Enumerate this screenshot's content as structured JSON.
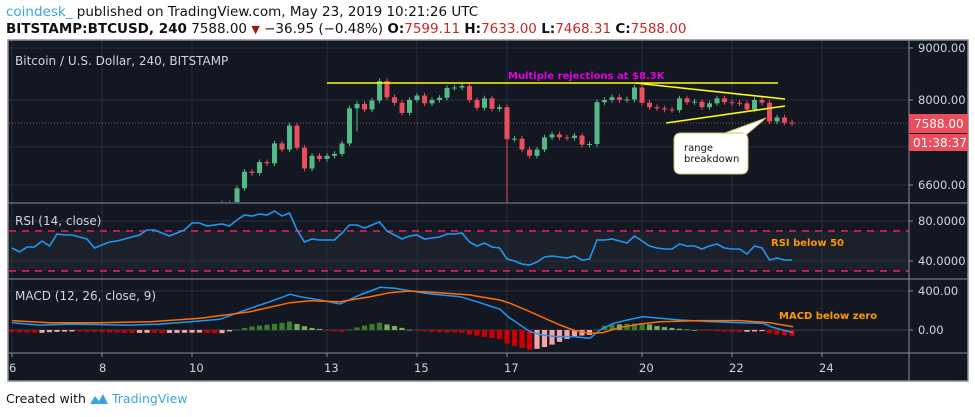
{
  "header": {
    "author": "coindesk_",
    "published": " published on TradingView.com, May 23, 2019 10:21:26 UTC",
    "symbol": "BITSTAMP:BTCUSD, 240",
    "last": "7588.00",
    "change_icon": "triangle-down-icon",
    "change": "−36.95 (−0.48%)",
    "o_label": "O:",
    "o": "7599.11",
    "h_label": "H:",
    "h": "7633.00",
    "l_label": "L:",
    "l": "7468.31",
    "c_label": "C:",
    "c": "7588.00"
  },
  "footer": {
    "created_with": "Created with",
    "brand": "TradingView",
    "logo_icon": "tradingview-logo-icon"
  },
  "colors": {
    "background": "#131722",
    "up": "#53b987",
    "down": "#eb4d5c",
    "rsi": "#2196f3",
    "macd": "#2196f3",
    "signal": "#ff6d00",
    "annotation_line": "#ffff00",
    "annotation_magenta": "#e100e1",
    "annotation_orange": "#ff9800"
  },
  "chart_data": [
    {
      "type": "candlestick",
      "title": "Bitcoin / U.S. Dollar, 240, BITSTAMP",
      "scale": "log",
      "y_ticks": [
        "9000.00",
        "8000.00",
        "6600.00"
      ],
      "last_price_label": "7588.00",
      "countdown_label": "01:38:37",
      "x_ticks": [
        "6",
        "8",
        "10",
        "13",
        "15",
        "17",
        "20",
        "22",
        "24"
      ],
      "x_tick_days": [
        6,
        8,
        10,
        13,
        15,
        17,
        20,
        22,
        24
      ],
      "first_candle_day": 10.667,
      "interval_minutes": 240,
      "first_open": 6250,
      "close": [
        6330,
        6320,
        6550,
        6800,
        6780,
        6950,
        6930,
        7250,
        7150,
        7550,
        7180,
        6850,
        7050,
        7000,
        7050,
        7080,
        7250,
        7850,
        7930,
        7830,
        7990,
        8350,
        8050,
        7950,
        7770,
        8000,
        8080,
        7940,
        8000,
        8040,
        8220,
        8230,
        8260,
        8000,
        7860,
        8030,
        7840,
        7870,
        7320,
        7330,
        7150,
        7050,
        7150,
        7350,
        7400,
        7350,
        7340,
        7380,
        7230,
        7240,
        7960,
        8000,
        8050,
        8000,
        8010,
        8230,
        7950,
        7870,
        7850,
        7830,
        7820,
        8030,
        7960,
        7970,
        7870,
        7940,
        8030,
        7960,
        7950,
        7940,
        7830,
        8000,
        7950,
        7620,
        7690,
        7600,
        7588
      ],
      "wick_overrides": [
        {
          "candle": 38,
          "low": 6150
        },
        {
          "candle": 18,
          "low": 7450
        }
      ],
      "annotations": {
        "resistance_label": "Multiple rejections at $8.3K",
        "callout": [
          "range",
          "breakdown"
        ]
      }
    },
    {
      "type": "line",
      "title": "RSI (14, close)",
      "y_ticks": [
        "80.0000",
        "40.0000"
      ],
      "bands": [
        70,
        30
      ],
      "first_day": 6,
      "interval_minutes": 240,
      "values": [
        53,
        49,
        54,
        54,
        60,
        55,
        67,
        66,
        66,
        64,
        62,
        53,
        56,
        59,
        60,
        62,
        64,
        66,
        71,
        71,
        68,
        65,
        68,
        71,
        78,
        78,
        75,
        76,
        77,
        75,
        81,
        86,
        85,
        87,
        86,
        90,
        85,
        88,
        71,
        59,
        62,
        61,
        61,
        61,
        68,
        76,
        76,
        73,
        76,
        79,
        70,
        66,
        62,
        65,
        66,
        62,
        63,
        64,
        67,
        67,
        68,
        59,
        55,
        58,
        54,
        53,
        42,
        40,
        37,
        36,
        39,
        44,
        45,
        44,
        43,
        45,
        41,
        42,
        61,
        61,
        62,
        60,
        58,
        65,
        60,
        55,
        53,
        52,
        52,
        57,
        55,
        55,
        52,
        55,
        57,
        53,
        52,
        52,
        47,
        55,
        53,
        41,
        43,
        41,
        41
      ],
      "annotation": "RSI below 50"
    },
    {
      "type": "line",
      "title": "MACD (12, 26, close, 9)",
      "y_ticks": [
        "400.00",
        "0.00"
      ],
      "series": [
        {
          "key": "macd",
          "points": [
            [
              6.0,
              75
            ],
            [
              6.62,
              50
            ],
            [
              7.29,
              60
            ],
            [
              7.96,
              55
            ],
            [
              8.62,
              50
            ],
            [
              9.29,
              60
            ],
            [
              9.96,
              85
            ],
            [
              10.62,
              110
            ],
            [
              11.29,
              222
            ],
            [
              11.73,
              290
            ],
            [
              12.18,
              366
            ],
            [
              12.4,
              342
            ],
            [
              12.84,
              308
            ],
            [
              13.29,
              267
            ],
            [
              13.73,
              359
            ],
            [
              14.18,
              438
            ],
            [
              14.51,
              428
            ],
            [
              14.73,
              410
            ],
            [
              15.29,
              370
            ],
            [
              15.96,
              342
            ],
            [
              16.4,
              280
            ],
            [
              16.62,
              246
            ],
            [
              16.84,
              215
            ],
            [
              17.02,
              137
            ],
            [
              17.22,
              75
            ],
            [
              17.51,
              -17
            ],
            [
              17.78,
              -51
            ],
            [
              18.11,
              -68
            ],
            [
              18.47,
              -68
            ],
            [
              18.84,
              -85
            ],
            [
              19.07,
              0
            ],
            [
              19.36,
              68
            ],
            [
              19.67,
              103
            ],
            [
              20.02,
              137
            ],
            [
              20.4,
              120
            ],
            [
              20.84,
              103
            ],
            [
              21.58,
              85
            ],
            [
              22.18,
              75
            ],
            [
              22.69,
              68
            ],
            [
              22.91,
              27
            ],
            [
              23.36,
              -27
            ]
          ]
        },
        {
          "key": "signal",
          "points": [
            [
              6.0,
              96
            ],
            [
              6.84,
              75
            ],
            [
              7.96,
              75
            ],
            [
              9.07,
              85
            ],
            [
              10.18,
              120
            ],
            [
              11.29,
              188
            ],
            [
              12.18,
              280
            ],
            [
              12.62,
              301
            ],
            [
              13.29,
              290
            ],
            [
              13.96,
              342
            ],
            [
              14.4,
              383
            ],
            [
              14.84,
              400
            ],
            [
              15.51,
              383
            ],
            [
              16.18,
              359
            ],
            [
              16.4,
              342
            ],
            [
              16.84,
              308
            ],
            [
              17.07,
              274
            ],
            [
              17.51,
              188
            ],
            [
              17.84,
              120
            ],
            [
              18.18,
              51
            ],
            [
              18.51,
              -7
            ],
            [
              18.84,
              -34
            ],
            [
              19.13,
              -27
            ],
            [
              19.51,
              27
            ],
            [
              19.96,
              62
            ],
            [
              20.4,
              85
            ],
            [
              21.29,
              96
            ],
            [
              22.18,
              96
            ],
            [
              22.84,
              75
            ],
            [
              23.36,
              34
            ]
          ]
        }
      ],
      "annotation": "MACD below zero"
    }
  ]
}
